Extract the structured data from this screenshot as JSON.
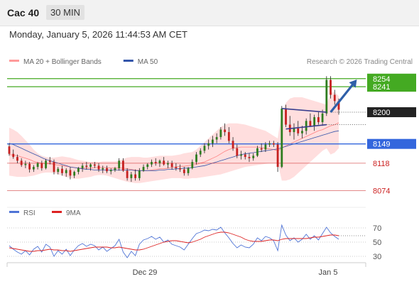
{
  "header": {
    "title": "Cac 40",
    "timeframe": "30 MIN"
  },
  "datetime": "Monday, January 5, 2026 11:44:53 AM CET",
  "colors": {
    "resistance": "#44aa22",
    "support": "#3366dd",
    "pivot": "#222222",
    "lower_support": "#cc2222",
    "bollinger": "#ffdede",
    "ma50": "#3355aa",
    "ma20": "#ff8080",
    "rsi": "#4f74d6",
    "rsi_ma": "#dd2222",
    "arrow": "#2e5fa8"
  },
  "chart_data": [
    {
      "type": "candlestick",
      "legend": [
        {
          "name": "MA 20 + Bollinger Bands",
          "color": "#ff9a9a"
        },
        {
          "name": "MA 50",
          "color": "#3355aa"
        }
      ],
      "copyright": "Research © 2026 Trading Central",
      "ylim": [
        8055,
        8272
      ],
      "x_ticks": [
        "Dec 29",
        "Jan 5"
      ],
      "levels": [
        {
          "label": "8254",
          "value": 8254,
          "role": "resistance"
        },
        {
          "label": "8241",
          "value": 8241,
          "role": "resistance"
        },
        {
          "label": "8200",
          "value": 8200,
          "role": "pivot"
        },
        {
          "label": "8149",
          "value": 8149,
          "role": "support"
        },
        {
          "label": "8118",
          "value": 8118,
          "role": "lower_support"
        },
        {
          "label": "8074",
          "value": 8074,
          "role": "lower_support"
        }
      ],
      "ohlc": [
        [
          8145,
          8150,
          8130,
          8133
        ],
        [
          8133,
          8140,
          8125,
          8128
        ],
        [
          8128,
          8132,
          8118,
          8122
        ],
        [
          8122,
          8126,
          8112,
          8115
        ],
        [
          8115,
          8122,
          8110,
          8117
        ],
        [
          8117,
          8120,
          8103,
          8108
        ],
        [
          8108,
          8115,
          8104,
          8112
        ],
        [
          8112,
          8120,
          8108,
          8118
        ],
        [
          8118,
          8122,
          8106,
          8110
        ],
        [
          8110,
          8125,
          8108,
          8122
        ],
        [
          8122,
          8128,
          8116,
          8120
        ],
        [
          8120,
          8124,
          8100,
          8104
        ],
        [
          8104,
          8112,
          8100,
          8109
        ],
        [
          8109,
          8114,
          8098,
          8102
        ],
        [
          8102,
          8110,
          8096,
          8107
        ],
        [
          8107,
          8112,
          8092,
          8098
        ],
        [
          8098,
          8106,
          8094,
          8104
        ],
        [
          8104,
          8112,
          8100,
          8110
        ],
        [
          8110,
          8118,
          8104,
          8114
        ],
        [
          8114,
          8120,
          8108,
          8112
        ],
        [
          8112,
          8118,
          8106,
          8116
        ],
        [
          8116,
          8120,
          8110,
          8114
        ],
        [
          8114,
          8118,
          8104,
          8108
        ],
        [
          8108,
          8114,
          8102,
          8110
        ],
        [
          8110,
          8114,
          8102,
          8105
        ],
        [
          8105,
          8110,
          8100,
          8107
        ],
        [
          8107,
          8112,
          8104,
          8110
        ],
        [
          8110,
          8126,
          8106,
          8122
        ],
        [
          8122,
          8126,
          8104,
          8106
        ],
        [
          8106,
          8110,
          8090,
          8094
        ],
        [
          8094,
          8104,
          8088,
          8100
        ],
        [
          8100,
          8108,
          8090,
          8094
        ],
        [
          8094,
          8110,
          8090,
          8106
        ],
        [
          8106,
          8116,
          8104,
          8112
        ],
        [
          8112,
          8118,
          8108,
          8116
        ],
        [
          8116,
          8124,
          8112,
          8120
        ],
        [
          8120,
          8126,
          8114,
          8118
        ],
        [
          8118,
          8124,
          8112,
          8122
        ],
        [
          8122,
          8128,
          8114,
          8116
        ],
        [
          8116,
          8122,
          8110,
          8118
        ],
        [
          8118,
          8122,
          8108,
          8112
        ],
        [
          8112,
          8118,
          8106,
          8110
        ],
        [
          8110,
          8116,
          8104,
          8108
        ],
        [
          8108,
          8112,
          8098,
          8102
        ],
        [
          8102,
          8112,
          8098,
          8110
        ],
        [
          8110,
          8124,
          8108,
          8120
        ],
        [
          8120,
          8136,
          8116,
          8132
        ],
        [
          8132,
          8142,
          8128,
          8138
        ],
        [
          8138,
          8150,
          8134,
          8146
        ],
        [
          8146,
          8156,
          8140,
          8150
        ],
        [
          8150,
          8162,
          8144,
          8156
        ],
        [
          8156,
          8166,
          8150,
          8160
        ],
        [
          8160,
          8176,
          8156,
          8172
        ],
        [
          8172,
          8182,
          8162,
          8168
        ],
        [
          8168,
          8176,
          8150,
          8154
        ],
        [
          8154,
          8160,
          8138,
          8142
        ],
        [
          8142,
          8148,
          8126,
          8130
        ],
        [
          8130,
          8138,
          8124,
          8132
        ],
        [
          8132,
          8136,
          8124,
          8128
        ],
        [
          8128,
          8134,
          8120,
          8126
        ],
        [
          8126,
          8134,
          8122,
          8130
        ],
        [
          8130,
          8146,
          8128,
          8142
        ],
        [
          8142,
          8150,
          8136,
          8140
        ],
        [
          8140,
          8152,
          8136,
          8148
        ],
        [
          8148,
          8154,
          8144,
          8150
        ],
        [
          8150,
          8154,
          8144,
          8148
        ],
        [
          8148,
          8152,
          8104,
          8112
        ],
        [
          8112,
          8210,
          8110,
          8206
        ],
        [
          8206,
          8212,
          8176,
          8180
        ],
        [
          8180,
          8194,
          8162,
          8168
        ],
        [
          8168,
          8182,
          8156,
          8174
        ],
        [
          8174,
          8186,
          8162,
          8166
        ],
        [
          8166,
          8178,
          8158,
          8170
        ],
        [
          8170,
          8190,
          8164,
          8186
        ],
        [
          8186,
          8198,
          8176,
          8178
        ],
        [
          8178,
          8196,
          8170,
          8192
        ],
        [
          8192,
          8200,
          8180,
          8184
        ],
        [
          8184,
          8204,
          8178,
          8198
        ],
        [
          8198,
          8258,
          8194,
          8252
        ],
        [
          8252,
          8258,
          8222,
          8228
        ],
        [
          8228,
          8236,
          8212,
          8218
        ],
        [
          8218,
          8222,
          8196,
          8204
        ]
      ],
      "ma20": [
        8132,
        8131,
        8130,
        8128,
        8126,
        8124,
        8121,
        8119,
        8118,
        8117,
        8117,
        8116,
        8115,
        8114,
        8113,
        8112,
        8111,
        8110,
        8110,
        8110,
        8110,
        8111,
        8111,
        8111,
        8111,
        8110,
        8110,
        8110,
        8110,
        8109,
        8108,
        8107,
        8106,
        8106,
        8106,
        8107,
        8108,
        8109,
        8109,
        8110,
        8111,
        8112,
        8113,
        8113,
        8114,
        8115,
        8116,
        8118,
        8120,
        8123,
        8126,
        8129,
        8133,
        8137,
        8140,
        8142,
        8143,
        8144,
        8144,
        8144,
        8144,
        8144,
        8143,
        8142,
        8141,
        8140,
        8138,
        8142,
        8146,
        8149,
        8152,
        8155,
        8158,
        8161,
        8164,
        8167,
        8170,
        8172,
        8175,
        8178,
        8180,
        8183
      ],
      "bb_upper": [
        8175,
        8172,
        8168,
        8162,
        8155,
        8148,
        8140,
        8134,
        8130,
        8128,
        8127,
        8127,
        8128,
        8129,
        8128,
        8127,
        8125,
        8123,
        8122,
        8121,
        8120,
        8120,
        8120,
        8121,
        8121,
        8121,
        8121,
        8122,
        8125,
        8127,
        8128,
        8128,
        8128,
        8127,
        8127,
        8128,
        8129,
        8130,
        8130,
        8130,
        8130,
        8131,
        8132,
        8134,
        8135,
        8136,
        8140,
        8146,
        8152,
        8158,
        8164,
        8170,
        8176,
        8180,
        8182,
        8182,
        8182,
        8181,
        8180,
        8178,
        8176,
        8174,
        8172,
        8170,
        8166,
        8162,
        8158,
        8200,
        8215,
        8222,
        8224,
        8224,
        8224,
        8222,
        8220,
        8218,
        8216,
        8214,
        8212,
        8232,
        8232,
        8226
      ],
      "bb_lower": [
        8098,
        8097,
        8096,
        8096,
        8096,
        8097,
        8098,
        8100,
        8102,
        8103,
        8103,
        8102,
        8100,
        8098,
        8096,
        8094,
        8093,
        8093,
        8094,
        8095,
        8096,
        8098,
        8099,
        8099,
        8098,
        8096,
        8094,
        8092,
        8090,
        8088,
        8087,
        8086,
        8086,
        8087,
        8088,
        8089,
        8090,
        8091,
        8092,
        8093,
        8094,
        8094,
        8094,
        8093,
        8093,
        8094,
        8094,
        8095,
        8096,
        8097,
        8098,
        8099,
        8100,
        8102,
        8104,
        8106,
        8108,
        8110,
        8112,
        8113,
        8114,
        8115,
        8116,
        8117,
        8118,
        8118,
        8118,
        8090,
        8090,
        8092,
        8096,
        8102,
        8108,
        8114,
        8120,
        8126,
        8132,
        8138,
        8142,
        8132,
        8135,
        8142
      ],
      "ma50": [
        8150,
        8148,
        8145,
        8142,
        8139,
        8136,
        8133,
        8130,
        8127,
        8124,
        8122,
        8120,
        8118,
        8116,
        8114,
        8112,
        8111,
        8110,
        8109,
        8108,
        8108,
        8107,
        8107,
        8107,
        8107,
        8107,
        8107,
        8107,
        8107,
        8107,
        8107,
        8106,
        8106,
        8106,
        8106,
        8106,
        8106,
        8107,
        8107,
        8108,
        8108,
        8109,
        8109,
        8110,
        8110,
        8111,
        8112,
        8113,
        8114,
        8116,
        8118,
        8120,
        8122,
        8124,
        8126,
        8128,
        8130,
        8132,
        8133,
        8134,
        8135,
        8136,
        8137,
        8138,
        8139,
        8140,
        8141,
        8143,
        8145,
        8147,
        8149,
        8151,
        8153,
        8155,
        8157,
        8159,
        8161,
        8163,
        8165,
        8167,
        8169,
        8170
      ],
      "wedge": {
        "upper": [
          [
            67,
            8206
          ],
          [
            78,
            8200
          ]
        ],
        "lower": [
          [
            68,
            8173
          ],
          [
            78,
            8180
          ]
        ]
      },
      "arrow": {
        "from": [
          79,
          8200
        ],
        "to": [
          85,
          8249
        ]
      },
      "pivot_dotted_from": 79
    },
    {
      "type": "line",
      "legend": [
        {
          "name": "RSI",
          "color": "#4f74d6"
        },
        {
          "name": "9MA",
          "color": "#dd2222"
        }
      ],
      "ylim": [
        24,
        80
      ],
      "ticks": [
        70,
        50,
        30
      ],
      "rsi": [
        45,
        40,
        36,
        33,
        38,
        32,
        40,
        44,
        36,
        47,
        43,
        30,
        38,
        33,
        40,
        31,
        39,
        45,
        48,
        44,
        47,
        45,
        39,
        43,
        37,
        41,
        45,
        54,
        36,
        28,
        37,
        31,
        47,
        53,
        55,
        58,
        54,
        57,
        50,
        53,
        47,
        45,
        43,
        39,
        47,
        55,
        62,
        64,
        67,
        66,
        68,
        67,
        71,
        63,
        56,
        48,
        42,
        46,
        43,
        42,
        47,
        56,
        52,
        58,
        56,
        52,
        38,
        74,
        60,
        52,
        56,
        50,
        54,
        61,
        54,
        59,
        53,
        62,
        71,
        63,
        58,
        54
      ],
      "rsi_ma": [
        42,
        41,
        40,
        39,
        38,
        37,
        37,
        38,
        38,
        39,
        40,
        39,
        39,
        38,
        38,
        37,
        38,
        39,
        40,
        41,
        42,
        43,
        43,
        43,
        43,
        42,
        42,
        43,
        42,
        41,
        40,
        39,
        39,
        40,
        42,
        44,
        46,
        48,
        50,
        51,
        52,
        52,
        51,
        50,
        49,
        50,
        52,
        54,
        57,
        59,
        61,
        63,
        64,
        64,
        63,
        61,
        59,
        57,
        54,
        52,
        51,
        51,
        51,
        52,
        53,
        53,
        52,
        54,
        55,
        55,
        55,
        55,
        55,
        55,
        56,
        57,
        57,
        58,
        59,
        60,
        60,
        59
      ],
      "x_ticks": [
        "Dec 29",
        "Jan 5"
      ]
    }
  ]
}
